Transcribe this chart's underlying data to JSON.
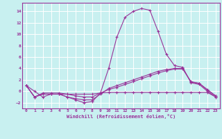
{
  "background_color": "#c8f0f0",
  "grid_color": "#ffffff",
  "line_color": "#993399",
  "title": "Windchill (Refroidissement éolien,°C)",
  "xlim": [
    -0.5,
    23.5
  ],
  "ylim": [
    -3,
    15.5
  ],
  "yticks": [
    -2,
    0,
    2,
    4,
    6,
    8,
    10,
    12,
    14
  ],
  "xticks": [
    0,
    1,
    2,
    3,
    4,
    5,
    6,
    7,
    8,
    9,
    10,
    11,
    12,
    13,
    14,
    15,
    16,
    17,
    18,
    19,
    20,
    21,
    22,
    23
  ],
  "curves": [
    [
      1,
      0,
      -1,
      -0.5,
      -0.5,
      -1,
      -1.5,
      -2,
      -1.8,
      -0.3,
      4,
      9.5,
      13.0,
      14.0,
      14.5,
      14.2,
      10.5,
      6.5,
      4.5,
      4.2,
      1.5,
      1.2,
      0.0,
      -1.0
    ],
    [
      1,
      -1,
      -0.5,
      -0.5,
      -0.5,
      -1.0,
      -1.3,
      -1.5,
      -1.5,
      -0.5,
      0.5,
      1.0,
      1.5,
      2.0,
      2.5,
      3.0,
      3.5,
      3.8,
      4.0,
      4.0,
      1.6,
      1.4,
      0.3,
      -0.8
    ],
    [
      1,
      -1,
      -0.3,
      -0.3,
      -0.3,
      -0.5,
      -0.8,
      -1.0,
      -1.0,
      -0.3,
      0.3,
      0.7,
      1.2,
      1.7,
      2.2,
      2.7,
      3.2,
      3.6,
      3.9,
      3.9,
      1.7,
      1.4,
      0.2,
      -0.8
    ],
    [
      1,
      -1,
      -0.5,
      -0.5,
      -0.5,
      -0.5,
      -0.5,
      -0.5,
      -0.5,
      -0.3,
      -0.2,
      -0.2,
      -0.2,
      -0.2,
      -0.2,
      -0.2,
      -0.2,
      -0.2,
      -0.2,
      -0.2,
      -0.2,
      -0.2,
      -0.2,
      -1.0
    ]
  ]
}
